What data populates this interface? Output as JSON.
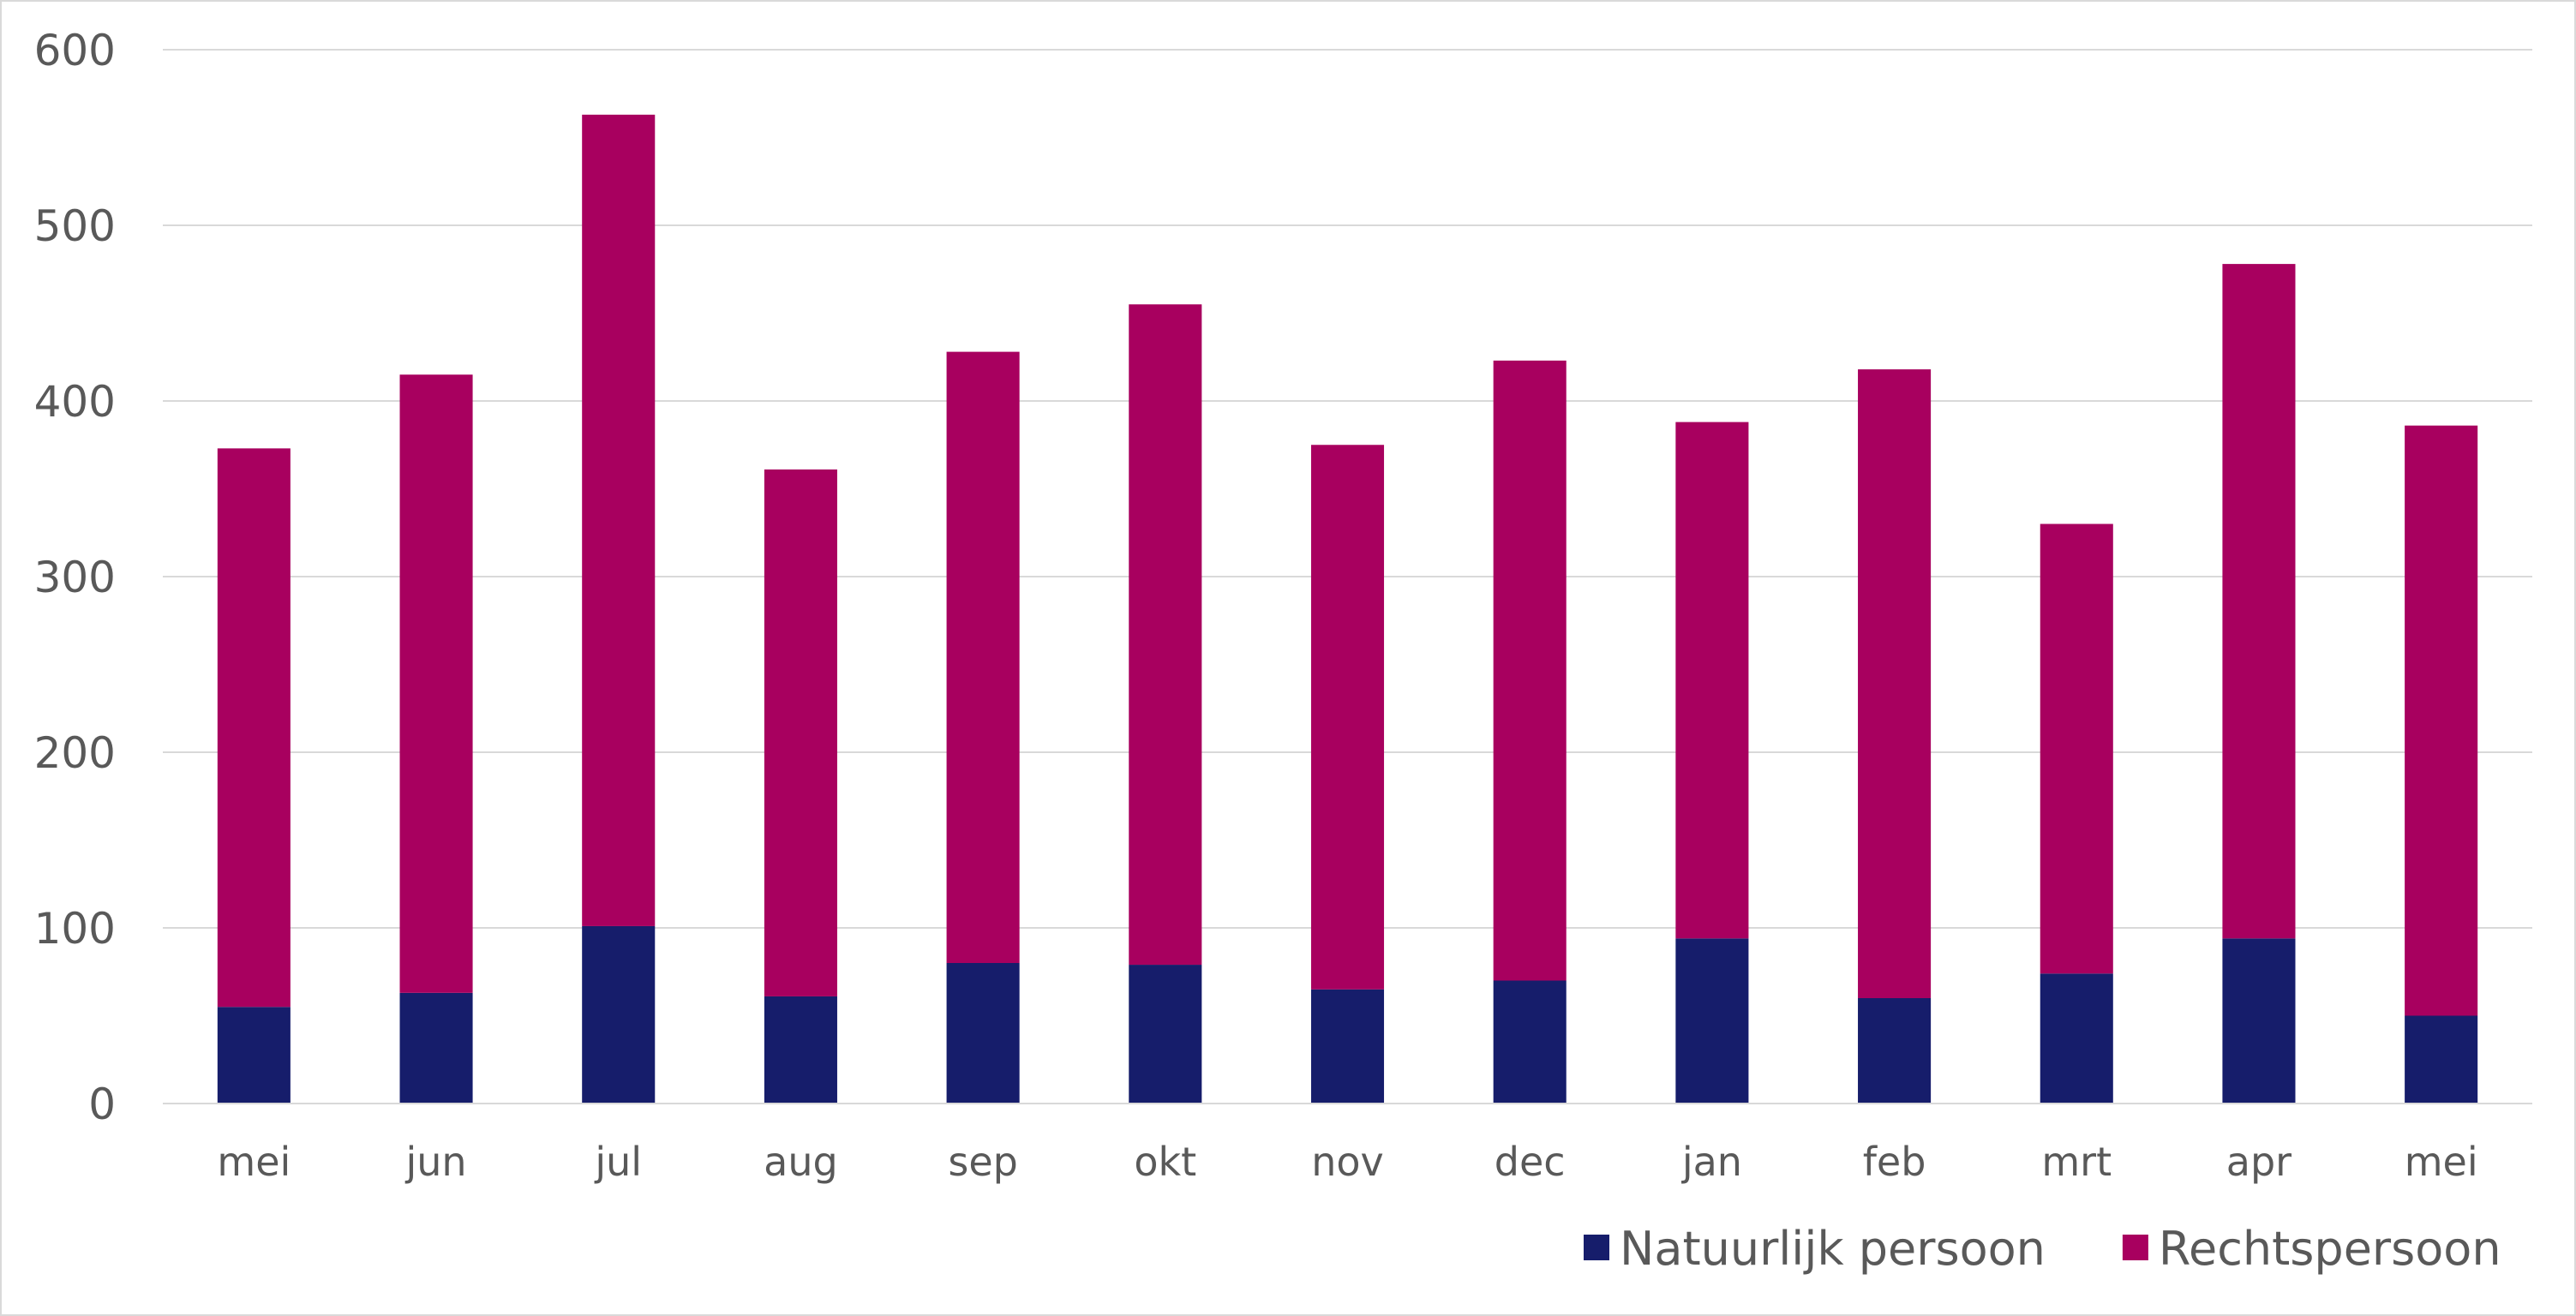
{
  "chart_data": {
    "type": "bar",
    "stacked": true,
    "categories": [
      "mei",
      "jun",
      "jul",
      "aug",
      "sep",
      "okt",
      "nov",
      "dec",
      "jan",
      "feb",
      "mrt",
      "apr",
      "mei"
    ],
    "series": [
      {
        "name": "Natuurlijk persoon",
        "color": "#161d6b",
        "values": [
          55,
          63,
          101,
          61,
          80,
          79,
          65,
          70,
          94,
          60,
          74,
          94,
          50
        ]
      },
      {
        "name": "Rechtspersoon",
        "color": "#a8005f",
        "values": [
          318,
          352,
          462,
          300,
          348,
          376,
          310,
          353,
          294,
          358,
          256,
          384,
          336
        ]
      }
    ],
    "ylim": [
      0,
      600
    ],
    "yticks": [
      0,
      100,
      200,
      300,
      400,
      500,
      600
    ],
    "grid": true,
    "legend_position": "bottom-right",
    "title": "",
    "xlabel": "",
    "ylabel": ""
  }
}
